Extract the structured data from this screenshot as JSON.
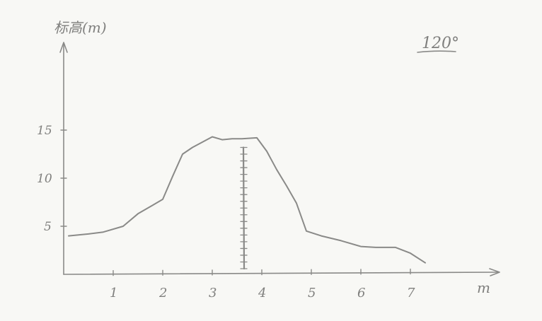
{
  "chart_data": {
    "type": "line",
    "ylabel": "标高(m)",
    "xlabel": "m",
    "annotation": "120°",
    "x_ticks": [
      1,
      2,
      3,
      4,
      5,
      6,
      7
    ],
    "y_ticks": [
      5,
      10,
      15
    ],
    "xlim": [
      0,
      8
    ],
    "ylim": [
      0,
      20
    ],
    "series": [
      {
        "x": [
          0.1,
          0.5,
          0.8,
          1.2,
          1.5,
          1.8,
          2.0,
          2.2,
          2.4,
          2.6,
          3.0,
          3.2,
          3.4,
          3.6,
          3.9,
          4.1,
          4.3,
          4.5,
          4.7,
          4.9,
          5.2,
          5.6,
          6.0,
          6.3,
          6.7,
          7.0,
          7.3
        ],
        "y": [
          4,
          4.2,
          4.4,
          5.0,
          6.3,
          7.2,
          7.8,
          10.2,
          12.5,
          13.2,
          14.3,
          14.0,
          14.1,
          14.1,
          14.2,
          12.8,
          10.9,
          9.2,
          7.4,
          4.5,
          4.0,
          3.5,
          2.9,
          2.8,
          2.8,
          2.2,
          1.2
        ]
      }
    ],
    "marker": {
      "x": 3.6,
      "y_from": 0,
      "y_to": 13.2,
      "ticks": 18
    }
  },
  "colors": {
    "ink": "#8a8a88",
    "paper": "#f8f8f5"
  }
}
